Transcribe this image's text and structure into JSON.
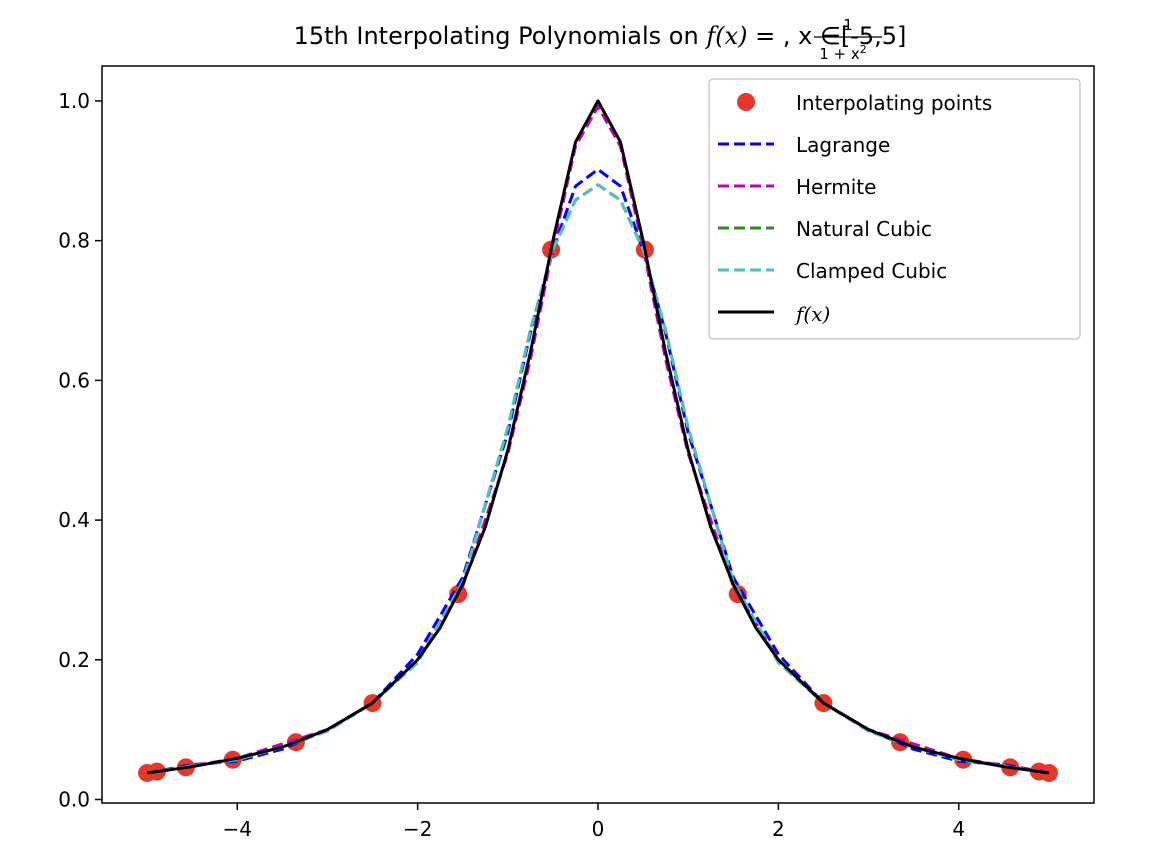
{
  "chart_data": {
    "type": "line",
    "title": {
      "prefix": "15th Interpolating Polynomials on ",
      "fname": "f",
      "arg": "(x)",
      "eq": " = ",
      "num": "1",
      "den": "1 + x",
      "den_exp": "2",
      "suffix_sep": ", x ",
      "elem": "∈",
      "domain": "[-5,5]"
    },
    "xlim": [
      -5.5,
      5.5
    ],
    "ylim": [
      -0.005,
      1.05
    ],
    "xticks": [
      -4,
      -2,
      0,
      2,
      4
    ],
    "xtick_labels": [
      "−4",
      "−2",
      "0",
      "2",
      "4"
    ],
    "yticks": [
      0.0,
      0.2,
      0.4,
      0.6,
      0.8,
      1.0
    ],
    "ytick_labels": [
      "0.0",
      "0.2",
      "0.4",
      "0.6",
      "0.8",
      "1.0"
    ],
    "grid": false,
    "legend_position": "top-right",
    "interpolating_points": {
      "name": "Interpolating points",
      "color": "#e8372a",
      "x": [
        -5.0,
        -4.89,
        -4.57,
        -4.05,
        -3.35,
        -2.5,
        -1.55,
        -0.52,
        0.52,
        1.55,
        2.5,
        3.35,
        4.05,
        4.57,
        4.89,
        5.0
      ],
      "y": [
        0.038,
        0.04,
        0.046,
        0.057,
        0.082,
        0.138,
        0.294,
        0.787,
        0.787,
        0.294,
        0.138,
        0.082,
        0.057,
        0.046,
        0.04,
        0.038
      ]
    },
    "series": [
      {
        "name": "Lagrange",
        "color": "#0000ff",
        "style": "dashed",
        "x": [
          -5.0,
          -4.5,
          -4.0,
          -3.5,
          -3.0,
          -2.5,
          -2.0,
          -1.5,
          -1.0,
          -0.75,
          -0.5,
          -0.25,
          0.0,
          0.25,
          0.5,
          0.75,
          1.0,
          1.5,
          2.0,
          2.5,
          3.0,
          3.5,
          4.0,
          4.5,
          5.0
        ],
        "y": [
          0.038,
          0.05,
          0.055,
          0.072,
          0.1,
          0.138,
          0.208,
          0.318,
          0.525,
          0.668,
          0.787,
          0.878,
          0.902,
          0.878,
          0.787,
          0.668,
          0.525,
          0.318,
          0.208,
          0.138,
          0.1,
          0.072,
          0.055,
          0.05,
          0.038
        ]
      },
      {
        "name": "Hermite",
        "color": "#bf00bf",
        "style": "dashed",
        "x": [
          -5.0,
          -4.0,
          -3.0,
          -2.5,
          -2.0,
          -1.5,
          -1.0,
          -0.75,
          -0.5,
          -0.25,
          0.0,
          0.25,
          0.5,
          0.75,
          1.0,
          1.5,
          2.0,
          2.5,
          3.0,
          4.0,
          5.0
        ],
        "y": [
          0.038,
          0.059,
          0.1,
          0.138,
          0.2,
          0.305,
          0.495,
          0.63,
          0.79,
          0.935,
          0.992,
          0.935,
          0.79,
          0.63,
          0.495,
          0.305,
          0.2,
          0.138,
          0.1,
          0.059,
          0.038
        ]
      },
      {
        "name": "Natural Cubic",
        "color": "#2e8b1f",
        "style": "dashed",
        "x": [
          -5.0,
          -4.5,
          -4.0,
          -3.5,
          -3.0,
          -2.5,
          -2.0,
          -1.5,
          -1.0,
          -0.75,
          -0.5,
          -0.25,
          0.0,
          0.25,
          0.5,
          0.75,
          1.0,
          1.5,
          2.0,
          2.5,
          3.0,
          3.5,
          4.0,
          4.5,
          5.0
        ],
        "y": [
          0.038,
          0.048,
          0.057,
          0.075,
          0.098,
          0.138,
          0.196,
          0.312,
          0.532,
          0.672,
          0.787,
          0.858,
          0.88,
          0.858,
          0.787,
          0.672,
          0.532,
          0.312,
          0.196,
          0.138,
          0.098,
          0.075,
          0.057,
          0.048,
          0.038
        ]
      },
      {
        "name": "Clamped Cubic",
        "color": "#4fbfbf",
        "style": "dashed",
        "x": [
          -5.0,
          -4.5,
          -4.0,
          -3.5,
          -3.0,
          -2.5,
          -2.0,
          -1.5,
          -1.0,
          -0.75,
          -0.5,
          -0.25,
          0.0,
          0.25,
          0.5,
          0.75,
          1.0,
          1.5,
          2.0,
          2.5,
          3.0,
          3.5,
          4.0,
          4.5,
          5.0
        ],
        "y": [
          0.038,
          0.048,
          0.057,
          0.075,
          0.098,
          0.138,
          0.196,
          0.312,
          0.532,
          0.672,
          0.787,
          0.858,
          0.88,
          0.858,
          0.787,
          0.672,
          0.532,
          0.312,
          0.196,
          0.138,
          0.098,
          0.075,
          0.057,
          0.048,
          0.038
        ]
      },
      {
        "name": "f(x)",
        "color": "#000000",
        "style": "solid",
        "x": [
          -5.0,
          -4.5,
          -4.0,
          -3.5,
          -3.0,
          -2.5,
          -2.0,
          -1.75,
          -1.5,
          -1.25,
          -1.0,
          -0.75,
          -0.5,
          -0.25,
          0.0,
          0.25,
          0.5,
          0.75,
          1.0,
          1.25,
          1.5,
          1.75,
          2.0,
          2.5,
          3.0,
          3.5,
          4.0,
          4.5,
          5.0
        ],
        "y": [
          0.038,
          0.047,
          0.059,
          0.075,
          0.1,
          0.138,
          0.2,
          0.246,
          0.308,
          0.39,
          0.5,
          0.64,
          0.8,
          0.941,
          1.0,
          0.941,
          0.8,
          0.64,
          0.5,
          0.39,
          0.308,
          0.246,
          0.2,
          0.138,
          0.1,
          0.075,
          0.059,
          0.047,
          0.038
        ]
      }
    ]
  }
}
